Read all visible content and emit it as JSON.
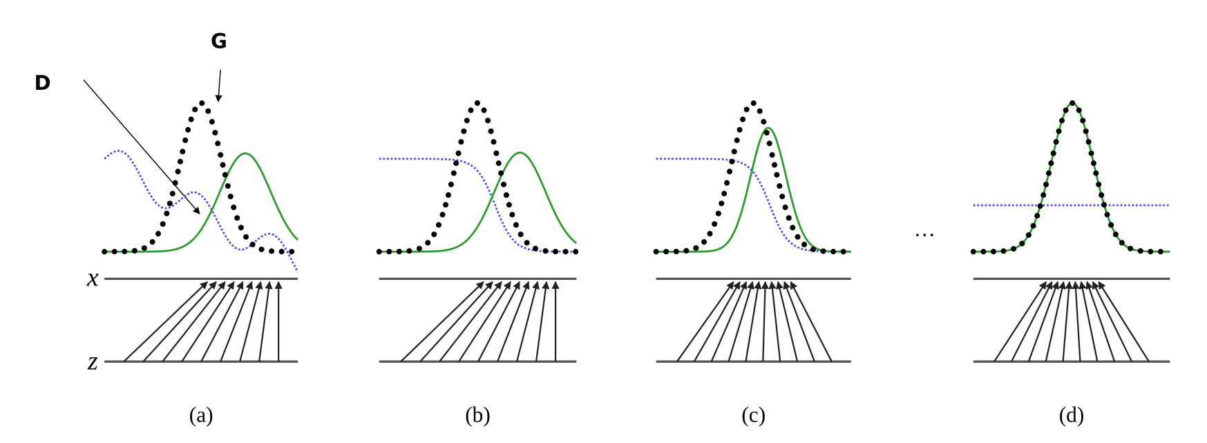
{
  "annotations": {
    "d_label": "D",
    "g_label": "G"
  },
  "axes": {
    "x_label": "x",
    "z_label": "z"
  },
  "panels": [
    {
      "label": "(a)"
    },
    {
      "label": "(b)"
    },
    {
      "label": "(c)"
    },
    {
      "label": "(d)"
    }
  ],
  "ellipsis": "···"
}
